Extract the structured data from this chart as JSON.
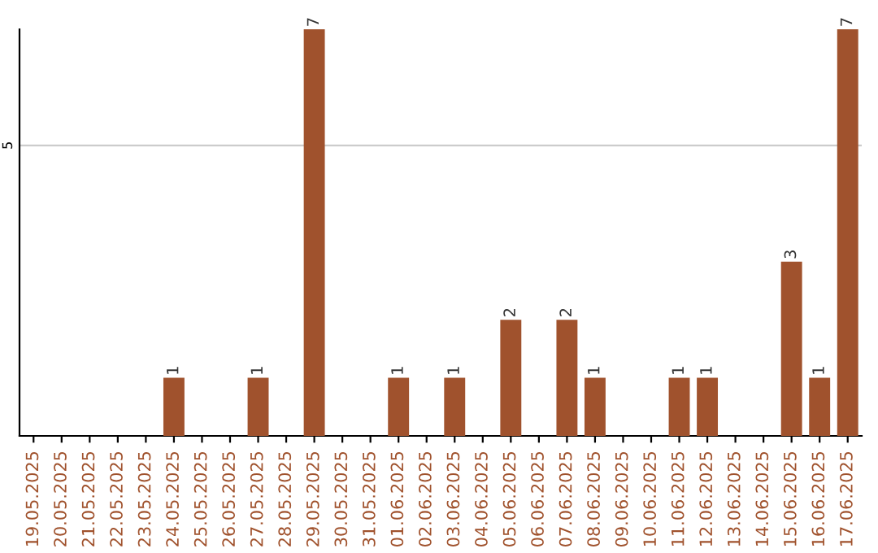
{
  "chart_data": {
    "type": "bar",
    "categories": [
      "19.05.2025",
      "20.05.2025",
      "21.05.2025",
      "22.05.2025",
      "23.05.2025",
      "24.05.2025",
      "25.05.2025",
      "26.05.2025",
      "27.05.2025",
      "28.05.2025",
      "29.05.2025",
      "30.05.2025",
      "31.05.2025",
      "01.06.2025",
      "02.06.2025",
      "03.06.2025",
      "04.06.2025",
      "05.06.2025",
      "06.06.2025",
      "07.06.2025",
      "08.06.2025",
      "09.06.2025",
      "10.06.2025",
      "11.06.2025",
      "12.06.2025",
      "13.06.2025",
      "14.06.2025",
      "15.06.2025",
      "16.06.2025",
      "17.06.2025"
    ],
    "values": [
      0,
      0,
      0,
      0,
      0,
      1,
      0,
      0,
      1,
      0,
      7,
      0,
      0,
      1,
      0,
      1,
      0,
      2,
      0,
      2,
      1,
      0,
      0,
      1,
      1,
      0,
      0,
      3,
      1,
      7
    ],
    "value_labels": [
      null,
      null,
      null,
      null,
      null,
      "1",
      null,
      null,
      "1",
      null,
      "7",
      null,
      null,
      "1",
      null,
      "1",
      null,
      "2",
      null,
      "2",
      "1",
      null,
      null,
      "1",
      "1",
      null,
      null,
      "3",
      "1",
      "7"
    ],
    "color": "#a0522d",
    "ylim": [
      0,
      7
    ],
    "yticks": [
      5
    ],
    "grid": "y",
    "legend": false
  }
}
